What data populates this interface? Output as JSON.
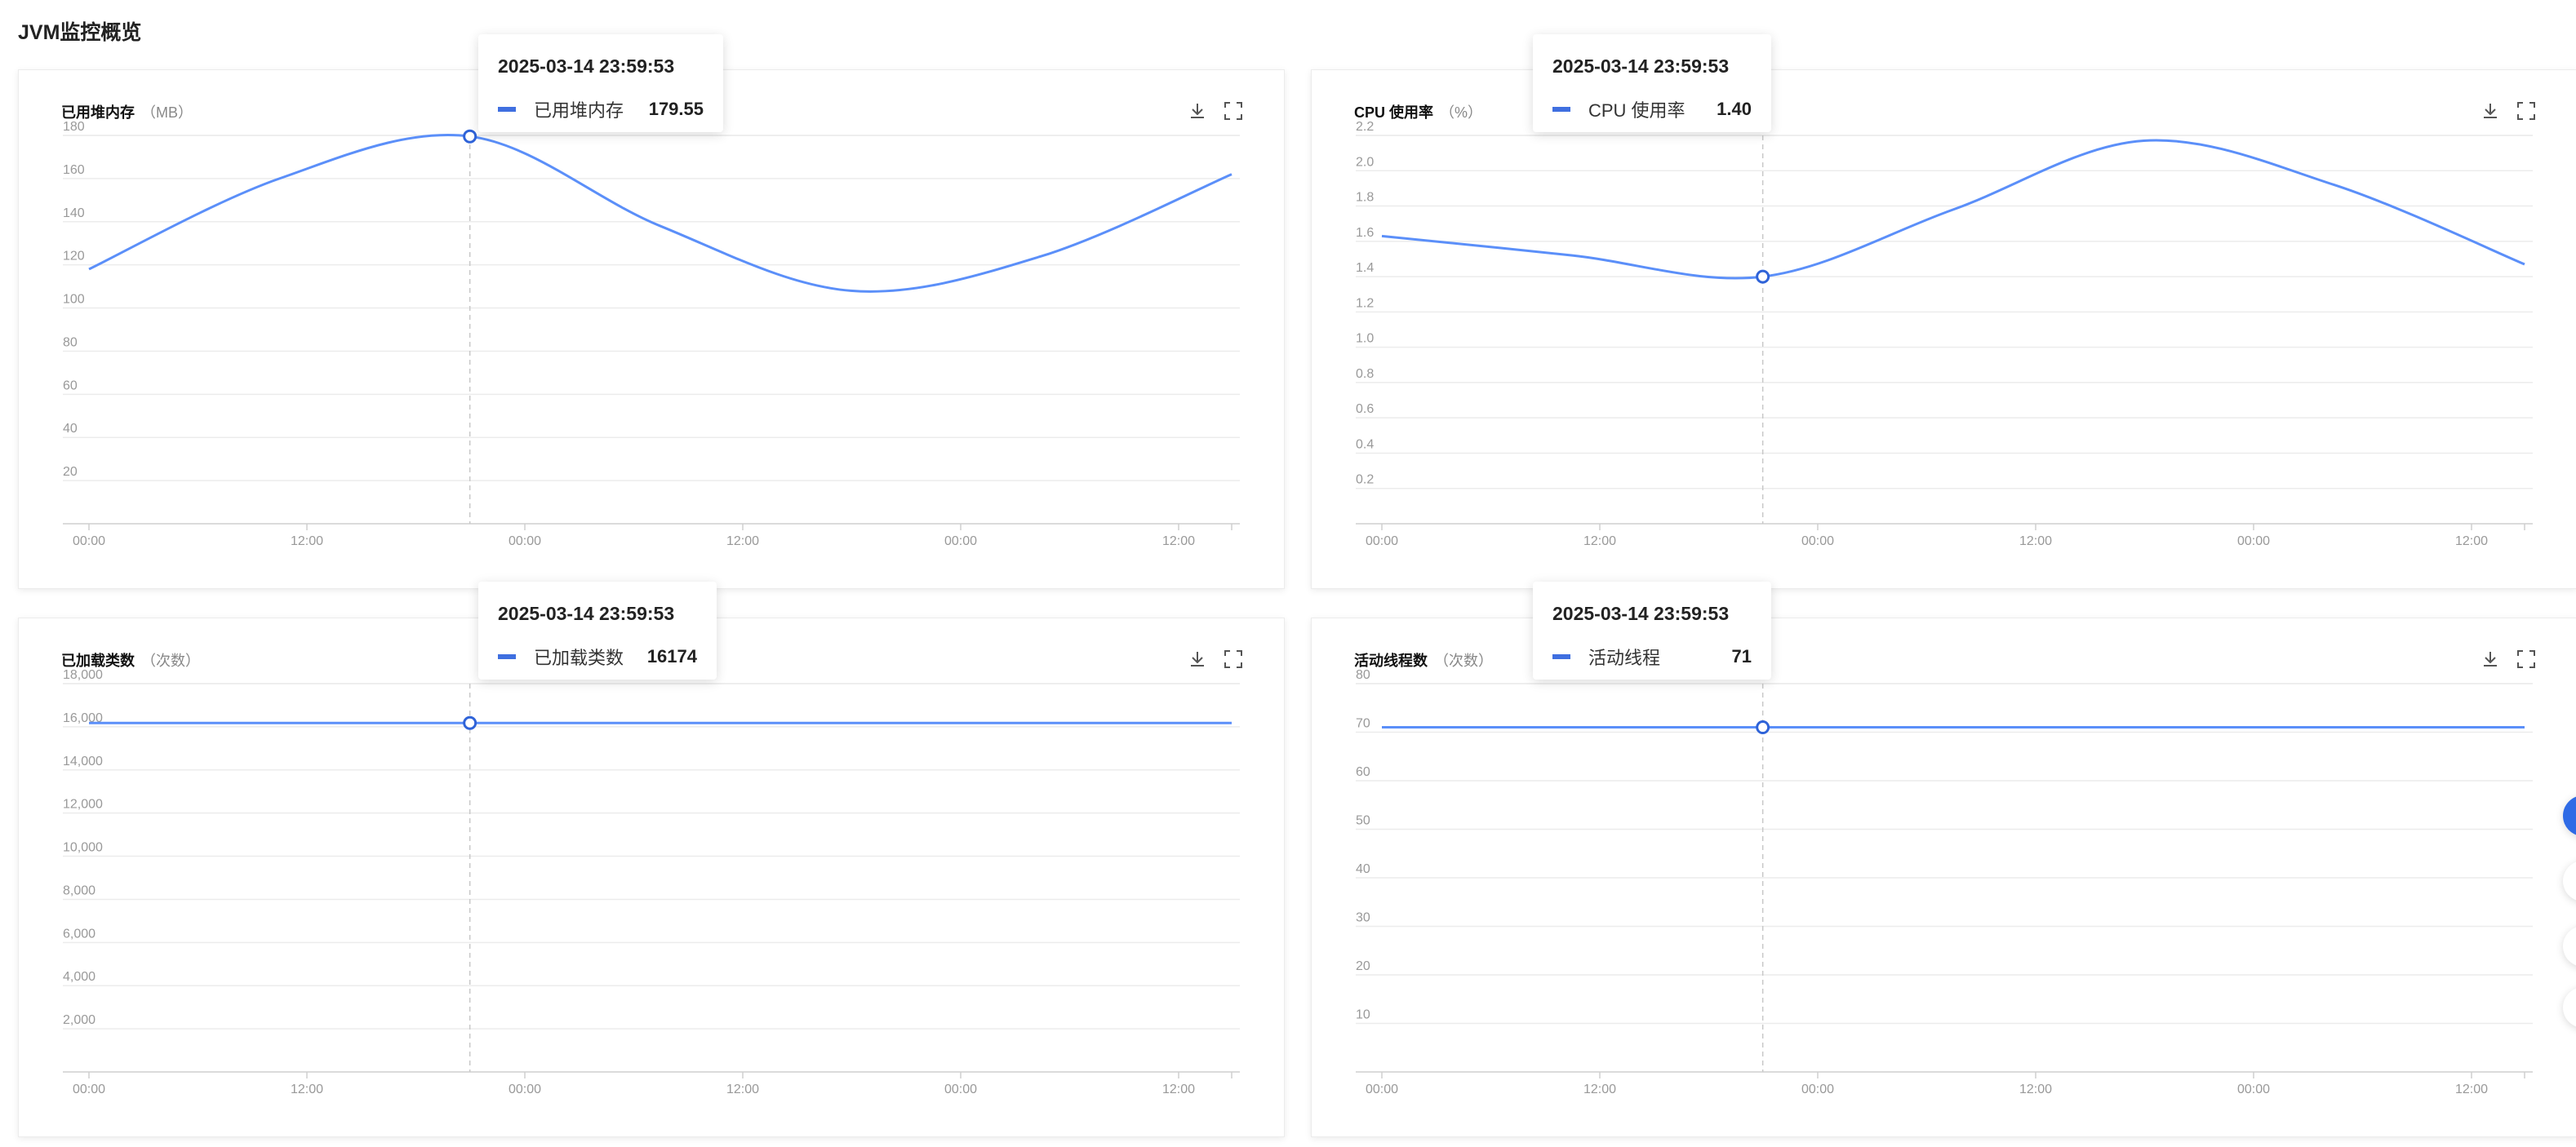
{
  "page": {
    "title": "JVM监控概览"
  },
  "icons": {
    "download": "download-icon",
    "fullscreen": "fullscreen-icon"
  },
  "colors": {
    "line": "#5b8ff9",
    "tooltip_swatch": "#3f6fe0",
    "grid": "#ececec"
  },
  "panels": [
    {
      "title": "已用堆内存",
      "unit": "（MB）",
      "tooltip": {
        "time": "2025-03-14 23:59:53",
        "label": "已用堆内存",
        "value": "179.55"
      }
    },
    {
      "title": "CPU 使用率",
      "unit": "（%）",
      "tooltip": {
        "time": "2025-03-14 23:59:53",
        "label": "CPU 使用率",
        "value": "1.40"
      }
    },
    {
      "title": "已加载类数",
      "unit": "（次数）",
      "tooltip": {
        "time": "2025-03-14 23:59:53",
        "label": "已加载类数",
        "value": "16174"
      }
    },
    {
      "title": "活动线程数",
      "unit": "（次数）",
      "tooltip": {
        "time": "2025-03-14 23:59:53",
        "label": "活动线程",
        "value": "71"
      }
    }
  ],
  "chart_data": [
    {
      "type": "line",
      "x_ticks": [
        "00:00",
        "12:00",
        "00:00",
        "12:00",
        "00:00",
        "12:00"
      ],
      "y_ticks": [
        "20",
        "40",
        "60",
        "80",
        "100",
        "120",
        "140",
        "160",
        "180"
      ],
      "ylim": [
        0,
        180
      ],
      "series": [
        {
          "values": [
            118,
            160,
            179.55,
            138,
            108,
            124,
            162
          ]
        }
      ],
      "highlight_index": 2,
      "grid": true
    },
    {
      "type": "line",
      "x_ticks": [
        "00:00",
        "12:00",
        "00:00",
        "12:00",
        "00:00",
        "12:00"
      ],
      "y_ticks": [
        "0.2",
        "0.4",
        "0.6",
        "0.8",
        "1.0",
        "1.2",
        "1.4",
        "1.6",
        "1.8",
        "2.0",
        "2.2"
      ],
      "ylim": [
        0,
        2.2
      ],
      "series": [
        {
          "values": [
            1.63,
            1.52,
            1.4,
            1.78,
            2.17,
            1.92,
            1.47
          ]
        }
      ],
      "highlight_index": 2,
      "grid": true
    },
    {
      "type": "line",
      "x_ticks": [
        "00:00",
        "12:00",
        "00:00",
        "12:00",
        "00:00",
        "12:00"
      ],
      "y_ticks": [
        "2,000",
        "4,000",
        "6,000",
        "8,000",
        "10,000",
        "12,000",
        "14,000",
        "16,000",
        "18,000"
      ],
      "ylim": [
        0,
        18000
      ],
      "series": [
        {
          "values": [
            16174,
            16174,
            16174,
            16174,
            16174,
            16174,
            16174
          ]
        }
      ],
      "highlight_index": 2,
      "grid": true
    },
    {
      "type": "line",
      "x_ticks": [
        "00:00",
        "12:00",
        "00:00",
        "12:00",
        "00:00",
        "12:00"
      ],
      "y_ticks": [
        "10",
        "20",
        "30",
        "40",
        "50",
        "60",
        "70",
        "80"
      ],
      "ylim": [
        0,
        80
      ],
      "series": [
        {
          "values": [
            71,
            71,
            71,
            71,
            71,
            71,
            71
          ]
        }
      ],
      "highlight_index": 2,
      "grid": true
    }
  ]
}
